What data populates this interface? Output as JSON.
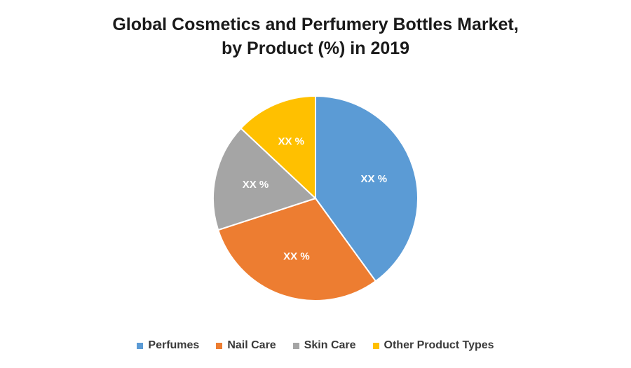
{
  "chart_data": {
    "type": "pie",
    "title_lines": [
      "Global Cosmetics and Perfumery Bottles Market,",
      "by Product (%) in 2019"
    ],
    "categories": [
      "Perfumes",
      "Nail Care",
      "Skin Care",
      "Other Product Types"
    ],
    "values": [
      40,
      30,
      17,
      13
    ],
    "data_labels": [
      "XX %",
      "XX %",
      "XX %",
      "XX %"
    ],
    "colors": [
      "#5B9BD5",
      "#ED7D31",
      "#A5A5A5",
      "#FFC000"
    ],
    "legend_position": "bottom"
  }
}
